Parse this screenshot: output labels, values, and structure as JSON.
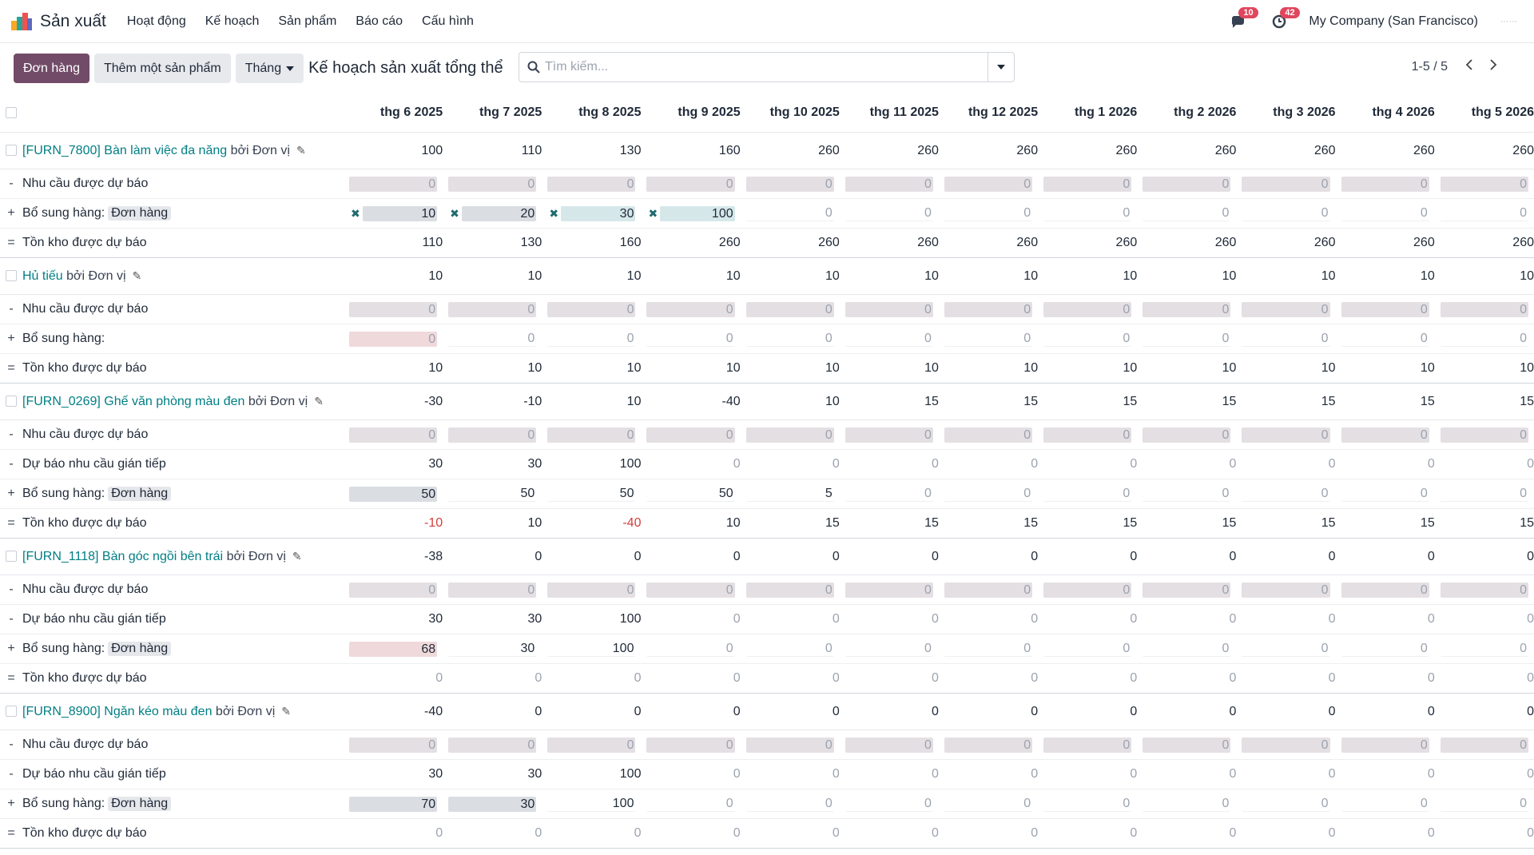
{
  "app": {
    "name": "Sản xuất",
    "menu": [
      "Hoạt động",
      "Kế hoạch",
      "Sản phẩm",
      "Báo cáo",
      "Cấu hình"
    ]
  },
  "topbar": {
    "messages_count": "10",
    "activities_count": "42",
    "company": "My Company (San Francisco)"
  },
  "control": {
    "order_button": "Đơn hàng",
    "add_product_button": "Thêm một sản phẩm",
    "period_button": "Tháng",
    "title": "Kế hoạch sản xuất tổng thể",
    "search_placeholder": "Tìm kiếm...",
    "pager": "1-5 / 5"
  },
  "columns": [
    "thg 6 2025",
    "thg 7 2025",
    "thg 8 2025",
    "thg 9 2025",
    "thg 10 2025",
    "thg 11 2025",
    "thg 12 2025",
    "thg 1 2026",
    "thg 2 2026",
    "thg 3 2026",
    "thg 4 2026",
    "thg 5 2026"
  ],
  "products": [
    {
      "name": "[FURN_7800] Bàn làm việc đa năng",
      "by": "bởi Đơn vị",
      "values": [
        100,
        110,
        130,
        160,
        260,
        260,
        260,
        260,
        260,
        260,
        260,
        260
      ],
      "rows": [
        {
          "sign": "-",
          "label": "Nhu cầu được dự báo",
          "tag": "",
          "style": [
            "g",
            "g",
            "g",
            "g",
            "g",
            "g",
            "g",
            "g",
            "g",
            "g",
            "g",
            "g"
          ],
          "values": [
            0,
            0,
            0,
            0,
            0,
            0,
            0,
            0,
            0,
            0,
            0,
            0
          ]
        },
        {
          "sign": "+",
          "label": "Bổ sung hàng:",
          "tag": "Đơn hàng",
          "style": [
            "xg",
            "xg",
            "xb",
            "xb",
            "l",
            "l",
            "l",
            "l",
            "l",
            "l",
            "l",
            "l"
          ],
          "values": [
            10,
            20,
            30,
            100,
            0,
            0,
            0,
            0,
            0,
            0,
            0,
            0
          ]
        },
        {
          "sign": "=",
          "label": "Tồn kho được dự báo",
          "tag": "",
          "style": [
            "t",
            "t",
            "t",
            "t",
            "t",
            "t",
            "t",
            "t",
            "t",
            "t",
            "t",
            "t"
          ],
          "values": [
            110,
            130,
            160,
            260,
            260,
            260,
            260,
            260,
            260,
            260,
            260,
            260
          ]
        }
      ]
    },
    {
      "name": "Hủ tiếu",
      "by": "bởi Đơn vị",
      "values": [
        10,
        10,
        10,
        10,
        10,
        10,
        10,
        10,
        10,
        10,
        10,
        10
      ],
      "rows": [
        {
          "sign": "-",
          "label": "Nhu cầu được dự báo",
          "tag": "",
          "style": [
            "g",
            "g",
            "g",
            "g",
            "g",
            "g",
            "g",
            "g",
            "g",
            "g",
            "g",
            "g"
          ],
          "values": [
            0,
            0,
            0,
            0,
            0,
            0,
            0,
            0,
            0,
            0,
            0,
            0
          ]
        },
        {
          "sign": "+",
          "label": "Bổ sung hàng:",
          "tag": "",
          "style": [
            "p",
            "l",
            "l",
            "l",
            "l",
            "l",
            "l",
            "l",
            "l",
            "l",
            "l",
            "l"
          ],
          "values": [
            0,
            0,
            0,
            0,
            0,
            0,
            0,
            0,
            0,
            0,
            0,
            0
          ]
        },
        {
          "sign": "=",
          "label": "Tồn kho được dự báo",
          "tag": "",
          "style": [
            "t",
            "t",
            "t",
            "t",
            "t",
            "t",
            "t",
            "t",
            "t",
            "t",
            "t",
            "t"
          ],
          "values": [
            10,
            10,
            10,
            10,
            10,
            10,
            10,
            10,
            10,
            10,
            10,
            10
          ]
        }
      ]
    },
    {
      "name": "[FURN_0269] Ghế văn phòng màu đen",
      "by": "bởi Đơn vị",
      "values": [
        -30,
        -10,
        10,
        -40,
        10,
        15,
        15,
        15,
        15,
        15,
        15,
        15
      ],
      "rows": [
        {
          "sign": "-",
          "label": "Nhu cầu được dự báo",
          "tag": "",
          "style": [
            "g",
            "g",
            "g",
            "g",
            "g",
            "g",
            "g",
            "g",
            "g",
            "g",
            "g",
            "g"
          ],
          "values": [
            0,
            0,
            0,
            0,
            0,
            0,
            0,
            0,
            0,
            0,
            0,
            0
          ]
        },
        {
          "sign": "-",
          "label": "Dự báo nhu cầu gián tiếp",
          "tag": "",
          "style": [
            "t",
            "t",
            "t",
            "t",
            "t",
            "t",
            "t",
            "t",
            "t",
            "t",
            "t",
            "t"
          ],
          "values": [
            30,
            30,
            100,
            0,
            0,
            0,
            0,
            0,
            0,
            0,
            0,
            0
          ]
        },
        {
          "sign": "+",
          "label": "Bổ sung hàng:",
          "tag": "Đơn hàng",
          "style": [
            "fg",
            "v",
            "v",
            "v",
            "v",
            "l",
            "l",
            "l",
            "l",
            "l",
            "l",
            "l"
          ],
          "values": [
            50,
            50,
            50,
            50,
            5,
            0,
            0,
            0,
            0,
            0,
            0,
            0
          ]
        },
        {
          "sign": "=",
          "label": "Tồn kho được dự báo",
          "tag": "",
          "style": [
            "t",
            "t",
            "t",
            "t",
            "t",
            "t",
            "t",
            "t",
            "t",
            "t",
            "t",
            "t"
          ],
          "values": [
            -10,
            10,
            -40,
            10,
            15,
            15,
            15,
            15,
            15,
            15,
            15,
            15
          ]
        }
      ]
    },
    {
      "name": "[FURN_1118] Bàn góc ngồi bên trái",
      "by": "bởi Đơn vị",
      "values": [
        -38,
        0,
        0,
        0,
        0,
        0,
        0,
        0,
        0,
        0,
        0,
        0
      ],
      "rows": [
        {
          "sign": "-",
          "label": "Nhu cầu được dự báo",
          "tag": "",
          "style": [
            "g",
            "g",
            "g",
            "g",
            "g",
            "g",
            "g",
            "g",
            "g",
            "g",
            "g",
            "g"
          ],
          "values": [
            0,
            0,
            0,
            0,
            0,
            0,
            0,
            0,
            0,
            0,
            0,
            0
          ]
        },
        {
          "sign": "-",
          "label": "Dự báo nhu cầu gián tiếp",
          "tag": "",
          "style": [
            "t",
            "t",
            "t",
            "t",
            "t",
            "t",
            "t",
            "t",
            "t",
            "t",
            "t",
            "t"
          ],
          "values": [
            30,
            30,
            100,
            0,
            0,
            0,
            0,
            0,
            0,
            0,
            0,
            0
          ]
        },
        {
          "sign": "+",
          "label": "Bổ sung hàng:",
          "tag": "Đơn hàng",
          "style": [
            "pv",
            "v",
            "v",
            "l",
            "l",
            "l",
            "l",
            "l",
            "l",
            "l",
            "l",
            "l"
          ],
          "values": [
            68,
            30,
            100,
            0,
            0,
            0,
            0,
            0,
            0,
            0,
            0,
            0
          ]
        },
        {
          "sign": "=",
          "label": "Tồn kho được dự báo",
          "tag": "",
          "style": [
            "t",
            "t",
            "t",
            "t",
            "t",
            "t",
            "t",
            "t",
            "t",
            "t",
            "t",
            "t"
          ],
          "values": [
            0,
            0,
            0,
            0,
            0,
            0,
            0,
            0,
            0,
            0,
            0,
            0
          ]
        }
      ]
    },
    {
      "name": "[FURN_8900] Ngăn kéo màu đen",
      "by": "bởi Đơn vị",
      "values": [
        -40,
        0,
        0,
        0,
        0,
        0,
        0,
        0,
        0,
        0,
        0,
        0
      ],
      "rows": [
        {
          "sign": "-",
          "label": "Nhu cầu được dự báo",
          "tag": "",
          "style": [
            "g",
            "g",
            "g",
            "g",
            "g",
            "g",
            "g",
            "g",
            "g",
            "g",
            "g",
            "g"
          ],
          "values": [
            0,
            0,
            0,
            0,
            0,
            0,
            0,
            0,
            0,
            0,
            0,
            0
          ]
        },
        {
          "sign": "-",
          "label": "Dự báo nhu cầu gián tiếp",
          "tag": "",
          "style": [
            "t",
            "t",
            "t",
            "t",
            "t",
            "t",
            "t",
            "t",
            "t",
            "t",
            "t",
            "t"
          ],
          "values": [
            30,
            30,
            100,
            0,
            0,
            0,
            0,
            0,
            0,
            0,
            0,
            0
          ]
        },
        {
          "sign": "+",
          "label": "Bổ sung hàng:",
          "tag": "Đơn hàng",
          "style": [
            "fg",
            "fg",
            "v",
            "l",
            "l",
            "l",
            "l",
            "l",
            "l",
            "l",
            "l",
            "l"
          ],
          "values": [
            70,
            30,
            100,
            0,
            0,
            0,
            0,
            0,
            0,
            0,
            0,
            0
          ]
        },
        {
          "sign": "=",
          "label": "Tồn kho được dự báo",
          "tag": "",
          "style": [
            "t",
            "t",
            "t",
            "t",
            "t",
            "t",
            "t",
            "t",
            "t",
            "t",
            "t",
            "t"
          ],
          "values": [
            0,
            0,
            0,
            0,
            0,
            0,
            0,
            0,
            0,
            0,
            0,
            0
          ]
        }
      ]
    }
  ],
  "colors": {
    "primary": "#714b67",
    "link": "#017e84",
    "negative": "#d23f3a",
    "badge": "#e0465d"
  }
}
